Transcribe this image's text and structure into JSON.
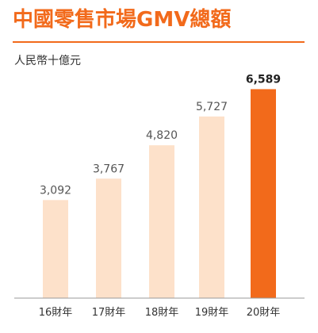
{
  "chart_data": {
    "type": "bar",
    "title": "中國零售市場GMV總額",
    "unit_label": "人民幣十億元",
    "categories": [
      "16財年",
      "17財年",
      "18財年",
      "19財年",
      "20財年"
    ],
    "values": [
      3092,
      3767,
      4820,
      5727,
      6589
    ],
    "value_labels": [
      "3,092",
      "3,767",
      "4,820",
      "5,727",
      "6,589"
    ],
    "highlight_index": 4,
    "ylim": [
      0,
      7000
    ],
    "grid": false,
    "colors": {
      "title": "#f26a1b",
      "bar": "#fde1ca",
      "bar_highlight": "#f26a1b",
      "axis": "#999999"
    }
  }
}
